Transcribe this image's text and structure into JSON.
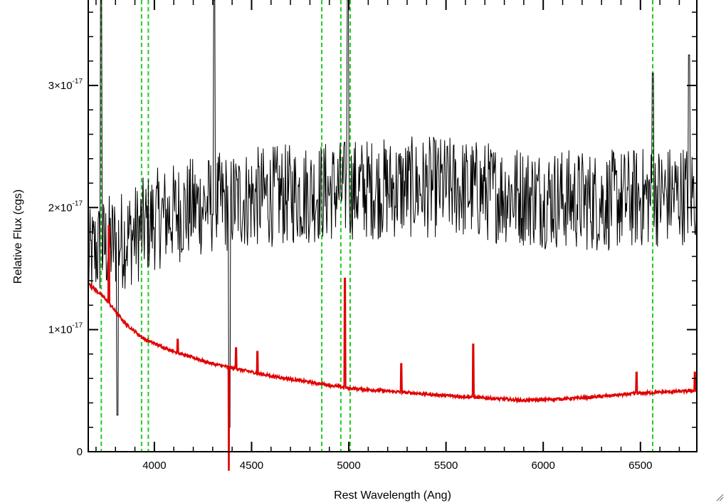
{
  "chart_data": {
    "type": "line",
    "title": "",
    "xlabel": "Rest Wavelength (Ang)",
    "ylabel": "Relative Flux (cgs)",
    "xlim": [
      3660,
      6790
    ],
    "ylim": [
      0,
      3.7e-17
    ],
    "x_ticks": [
      4000,
      4500,
      5000,
      5500,
      6000,
      6500
    ],
    "x_tick_labels": [
      "4000",
      "4500",
      "5000",
      "5500",
      "6000",
      "6500"
    ],
    "y_ticks": [
      0,
      1e-17,
      2e-17,
      3e-17
    ],
    "y_tick_labels": [
      {
        "mantissa": "0",
        "exponent": ""
      },
      {
        "mantissa": "1×10",
        "exponent": "-17"
      },
      {
        "mantissa": "2×10",
        "exponent": "-17"
      },
      {
        "mantissa": "3×10",
        "exponent": "-17"
      }
    ],
    "grid": false,
    "line_markers": [
      3727,
      3934,
      3969,
      4861,
      4959,
      5007,
      6563
    ],
    "series": [
      {
        "role": "observed spectrum",
        "color": "#000000",
        "noise": "high",
        "anchors": [
          [
            3660,
            1.55e-17
          ],
          [
            3700,
            1.65e-17
          ],
          [
            3800,
            1.72e-17
          ],
          [
            3900,
            1.78e-17
          ],
          [
            4000,
            1.9e-17
          ],
          [
            4200,
            2e-17
          ],
          [
            4500,
            2.08e-17
          ],
          [
            4800,
            2.12e-17
          ],
          [
            5000,
            2.15e-17
          ],
          [
            5500,
            2.17e-17
          ],
          [
            6000,
            2.08e-17
          ],
          [
            6300,
            2.05e-17
          ],
          [
            6500,
            2.08e-17
          ],
          [
            6790,
            2.12e-17
          ]
        ],
        "spikes": [
          [
            3727,
            3.7e-17
          ],
          [
            4307,
            3.7e-17
          ],
          [
            4995,
            3.7e-17
          ],
          [
            6563,
            3.1e-17
          ],
          [
            6750,
            3.25e-17
          ],
          [
            4385,
            2e-18
          ],
          [
            3810,
            3e-18
          ]
        ]
      },
      {
        "role": "template",
        "color": "#e00000",
        "noise": "low",
        "anchors": [
          [
            3660,
            1.38e-17
          ],
          [
            3750,
            1.25e-17
          ],
          [
            3850,
            1.05e-17
          ],
          [
            3950,
            9.2e-18
          ],
          [
            4100,
            8.2e-18
          ],
          [
            4300,
            7.2e-18
          ],
          [
            4600,
            6.2e-18
          ],
          [
            5000,
            5.2e-18
          ],
          [
            5500,
            4.6e-18
          ],
          [
            5900,
            4.2e-18
          ],
          [
            6200,
            4.4e-18
          ],
          [
            6500,
            4.8e-18
          ],
          [
            6790,
            5e-18
          ]
        ],
        "spikes": [
          [
            3766,
            1.85e-17
          ],
          [
            4980,
            1.42e-17
          ],
          [
            5640,
            8.8e-18
          ],
          [
            5270,
            7.2e-18
          ],
          [
            4530,
            8.2e-18
          ],
          [
            4420,
            8.5e-18
          ],
          [
            4120,
            9.2e-18
          ],
          [
            6480,
            6.5e-18
          ],
          [
            6780,
            6.5e-18
          ],
          [
            4383,
            -1.5e-18
          ]
        ]
      }
    ]
  },
  "colors": {
    "marker_line": "#22cc22",
    "axes": "#000000",
    "background": "#ffffff"
  },
  "icons": {
    "corner": "resize-grip-icon"
  }
}
